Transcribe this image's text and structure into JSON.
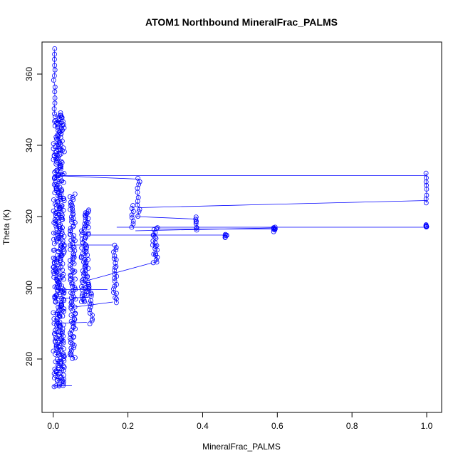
{
  "chart_data": {
    "type": "scatter",
    "title": "ATOM1 Northbound MineralFrac_PALMS",
    "xlabel": "MineralFrac_PALMS",
    "ylabel": "Theta (K)",
    "xlim": [
      -0.03,
      1.04
    ],
    "ylim": [
      265,
      369
    ],
    "xticks": [
      0.0,
      0.2,
      0.4,
      0.6,
      0.8,
      1.0
    ],
    "xtick_labels": [
      "0.0",
      "0.2",
      "0.4",
      "0.6",
      "0.8",
      "1.0"
    ],
    "yticks": [
      280,
      300,
      320,
      340,
      360
    ],
    "ytick_labels": [
      "280",
      "300",
      "320",
      "340",
      "360"
    ],
    "grid": false,
    "series": [
      {
        "color": "#0000ff",
        "marker": "open-circle",
        "connected": true,
        "clusters": [
          {
            "x": [
              0.0,
              0.03
            ],
            "y": [
              272,
              349
            ]
          },
          {
            "x": [
              0.0,
              0.005
            ],
            "y": [
              349,
              367
            ]
          },
          {
            "x": [
              0.045,
              0.06
            ],
            "y": [
              280,
              326
            ]
          },
          {
            "x": [
              0.075,
              0.095
            ],
            "y": [
              296,
              322
            ]
          },
          {
            "x": [
              0.095,
              0.105
            ],
            "y": [
              290,
              301
            ]
          },
          {
            "x": [
              0.16,
              0.17
            ],
            "y": [
              296,
              312
            ]
          },
          {
            "x": [
              0.21,
              0.215
            ],
            "y": [
              317,
              323
            ]
          },
          {
            "x": [
              0.225,
              0.232
            ],
            "y": [
              320,
              331
            ]
          },
          {
            "x": [
              0.265,
              0.28
            ],
            "y": [
              307,
              317
            ]
          },
          {
            "x": [
              0.38,
              0.385
            ],
            "y": [
              316,
              320
            ]
          },
          {
            "x": [
              0.46,
              0.465
            ],
            "y": [
              314,
              315
            ]
          },
          {
            "x": [
              0.59,
              0.595
            ],
            "y": [
              316,
              317
            ]
          },
          {
            "x": [
              0.998,
              1.0
            ],
            "y": [
              317,
              317.5
            ]
          },
          {
            "x": [
              0.998,
              1.0
            ],
            "y": [
              324,
              332
            ]
          }
        ],
        "connections": [
          {
            "x": [
              0.02,
              1.0
            ],
            "y": [
              331.5,
              331.5
            ]
          },
          {
            "x": [
              0.0,
              0.23
            ],
            "y": [
              331.5,
              330.5
            ]
          },
          {
            "x": [
              0.23,
              1.0
            ],
            "y": [
              322.5,
              324.5
            ]
          },
          {
            "x": [
              0.22,
              0.38
            ],
            "y": [
              320,
              319.3
            ]
          },
          {
            "x": [
              0.17,
              1.0
            ],
            "y": [
              317,
              317
            ]
          },
          {
            "x": [
              0.22,
              0.59
            ],
            "y": [
              316,
              316.8
            ]
          },
          {
            "x": [
              0.1,
              0.46
            ],
            "y": [
              314.8,
              314.8
            ]
          },
          {
            "x": [
              0.28,
              0.59
            ],
            "y": [
              316.5,
              316.5
            ]
          },
          {
            "x": [
              0.04,
              0.16
            ],
            "y": [
              312,
              312
            ]
          },
          {
            "x": [
              0.09,
              0.265
            ],
            "y": [
              302,
              307
            ]
          },
          {
            "x": [
              0.01,
              0.145
            ],
            "y": [
              299.5,
              299.5
            ]
          },
          {
            "x": [
              0.0,
              0.095
            ],
            "y": [
              297,
              297.3
            ]
          },
          {
            "x": [
              0.05,
              0.16
            ],
            "y": [
              294.5,
              296
            ]
          },
          {
            "x": [
              0.0,
              0.09
            ],
            "y": [
              290,
              290.3
            ]
          },
          {
            "x": [
              0.0,
              0.05
            ],
            "y": [
              272.5,
              272.5
            ]
          }
        ]
      }
    ]
  }
}
